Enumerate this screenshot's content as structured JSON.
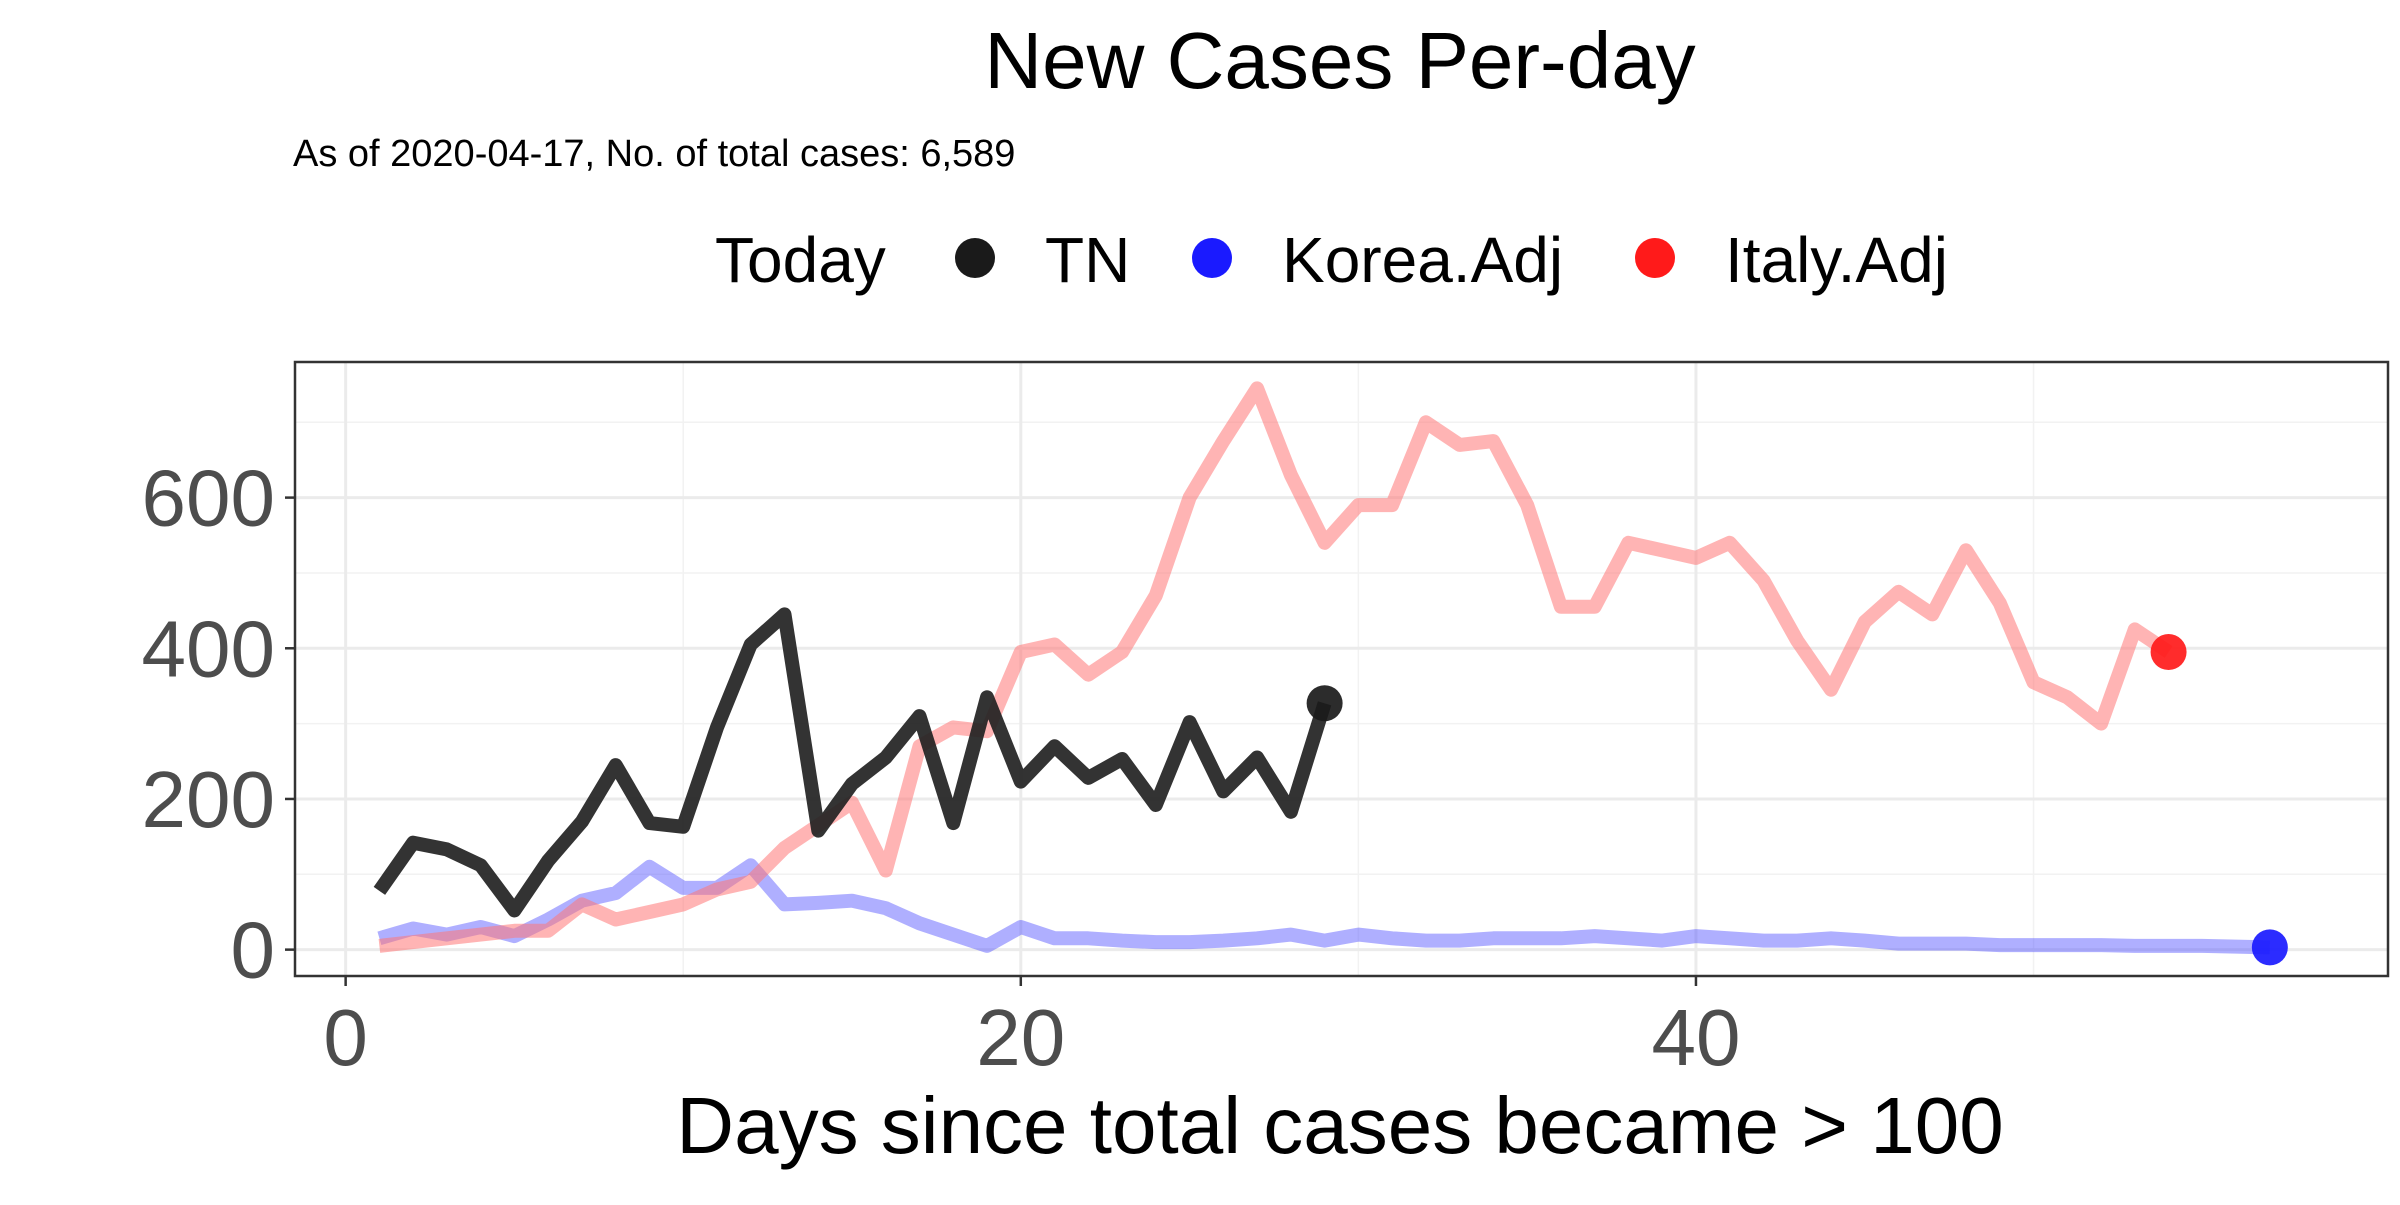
{
  "chart_data": {
    "type": "line",
    "title": "New Cases Per-day",
    "subtitle": "As of 2020-04-17, No. of total cases: 6,589",
    "xlabel": "Days since total cases became > 100",
    "ylabel": "",
    "xlim": [
      -1.5,
      60.5
    ],
    "ylim": [
      -35,
      780
    ],
    "x_ticks": [
      0,
      20,
      40
    ],
    "y_ticks": [
      0,
      200,
      400,
      600
    ],
    "grid": true,
    "legend": {
      "title": "Today",
      "position": "top",
      "entries": [
        {
          "label": "TN",
          "color": "#1a1a1a"
        },
        {
          "label": "Korea.Adj",
          "color": "#1a1aff"
        },
        {
          "label": "Italy.Adj",
          "color": "#ff1a1a"
        }
      ]
    },
    "series": [
      {
        "name": "TN",
        "color": "#222222",
        "opacity": 0.92,
        "x": [
          1,
          2,
          3,
          4,
          5,
          6,
          7,
          8,
          9,
          10,
          11,
          12,
          13,
          14,
          15,
          16,
          17,
          18,
          19,
          20,
          21,
          22,
          23,
          24,
          25,
          26,
          27,
          28,
          29
        ],
        "y": [
          78,
          142,
          133,
          112,
          52,
          118,
          170,
          245,
          168,
          163,
          295,
          405,
          445,
          158,
          220,
          255,
          310,
          168,
          335,
          223,
          270,
          228,
          253,
          192,
          302,
          210,
          255,
          183,
          327
        ]
      },
      {
        "name": "Korea.Adj",
        "color": "#4d4dff",
        "opacity": 0.45,
        "x": [
          1,
          2,
          3,
          4,
          5,
          6,
          7,
          8,
          9,
          10,
          11,
          12,
          13,
          14,
          15,
          16,
          17,
          18,
          19,
          20,
          21,
          22,
          23,
          24,
          25,
          26,
          27,
          28,
          29,
          30,
          31,
          32,
          33,
          34,
          35,
          36,
          37,
          38,
          39,
          40,
          41,
          42,
          43,
          44,
          45,
          46,
          47,
          48,
          49,
          50,
          51,
          52,
          53,
          54,
          55,
          56,
          57
        ],
        "y": [
          15,
          28,
          20,
          30,
          18,
          40,
          65,
          75,
          110,
          82,
          82,
          112,
          60,
          62,
          65,
          55,
          35,
          20,
          5,
          30,
          15,
          15,
          12,
          10,
          10,
          12,
          15,
          20,
          12,
          20,
          15,
          12,
          12,
          15,
          15,
          15,
          18,
          15,
          12,
          18,
          15,
          12,
          12,
          15,
          12,
          8,
          8,
          8,
          6,
          6,
          6,
          6,
          5,
          5,
          5,
          4,
          3
        ]
      },
      {
        "name": "Italy.Adj",
        "color": "#ff7777",
        "opacity": 0.55,
        "x": [
          1,
          2,
          3,
          4,
          5,
          6,
          7,
          8,
          9,
          10,
          11,
          12,
          13,
          14,
          15,
          16,
          17,
          18,
          19,
          20,
          21,
          22,
          23,
          24,
          25,
          26,
          27,
          28,
          29,
          30,
          31,
          32,
          33,
          34,
          35,
          36,
          37,
          38,
          39,
          40,
          41,
          42,
          43,
          44,
          45,
          46,
          47,
          48,
          49,
          50,
          51,
          52,
          53,
          54
        ],
        "y": [
          5,
          10,
          15,
          20,
          25,
          25,
          60,
          40,
          50,
          60,
          80,
          90,
          135,
          165,
          195,
          105,
          270,
          295,
          290,
          395,
          405,
          365,
          395,
          470,
          600,
          675,
          745,
          630,
          540,
          590,
          590,
          700,
          670,
          675,
          590,
          455,
          455,
          540,
          530,
          520,
          540,
          490,
          410,
          345,
          435,
          475,
          445,
          530,
          460,
          355,
          335,
          300,
          425,
          395
        ]
      }
    ],
    "endpoints": [
      {
        "name": "TN",
        "x": 29,
        "y": 327,
        "color": "#1a1a1a"
      },
      {
        "name": "Italy.Adj",
        "x": 54,
        "y": 395,
        "color": "#ff1a1a"
      },
      {
        "name": "Korea.Adj",
        "x": 57,
        "y": 3,
        "color": "#1a1aff"
      }
    ]
  }
}
